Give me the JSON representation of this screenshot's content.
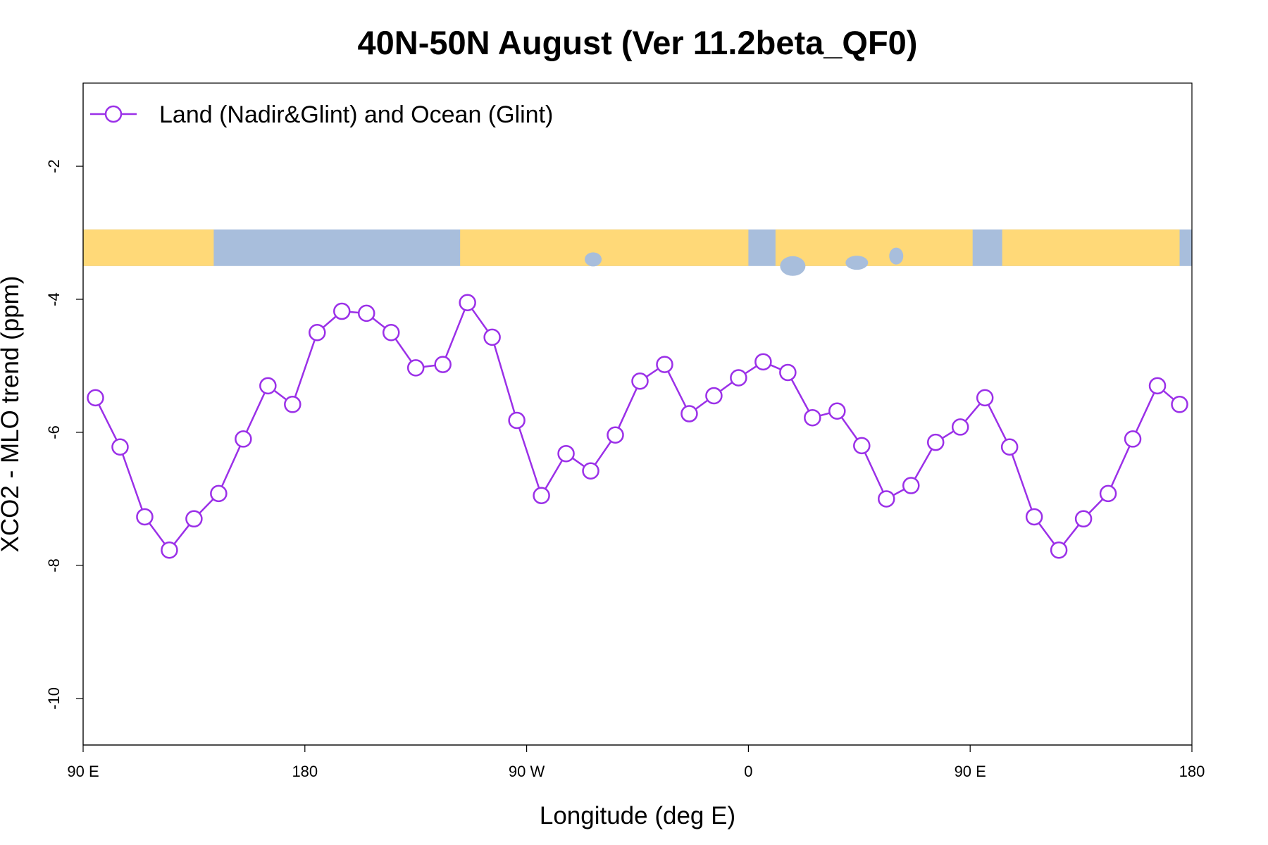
{
  "chart_data": {
    "type": "line",
    "title": "40N-50N August (Ver 11.2beta_QF0)",
    "xlabel": "Longitude (deg E)",
    "ylabel": "XCO2 - MLO trend (ppm)",
    "xlim": [
      90,
      540
    ],
    "ylim": [
      -10.7,
      -0.75
    ],
    "x_ticks": [
      {
        "value": 90,
        "label": "90 E"
      },
      {
        "value": 180,
        "label": "180"
      },
      {
        "value": 270,
        "label": "90 W"
      },
      {
        "value": 360,
        "label": "0"
      },
      {
        "value": 450,
        "label": "90 E"
      },
      {
        "value": 540,
        "label": "180"
      }
    ],
    "y_ticks": [
      {
        "value": -2,
        "label": "-2"
      },
      {
        "value": -4,
        "label": "-4"
      },
      {
        "value": -6,
        "label": "-6"
      },
      {
        "value": -8,
        "label": "-8"
      },
      {
        "value": -10,
        "label": "-10"
      }
    ],
    "legend": {
      "position": "top-left",
      "entries": [
        "Land (Nadir&Glint) and Ocean (Glint)"
      ]
    },
    "map_strip": {
      "y_top": -2.95,
      "y_bottom": -3.5,
      "land_color": "#FFD978",
      "ocean_color": "#A8BEDC"
    },
    "series": [
      {
        "name": "Land (Nadir&Glint) and Ocean (Glint)",
        "color": "#9B30E8",
        "marker": "open-circle",
        "x": [
          95,
          105,
          115,
          125,
          135,
          145,
          155,
          165,
          175,
          185,
          195,
          205,
          215,
          225,
          236,
          246,
          256,
          266,
          276,
          286,
          296,
          306,
          316,
          326,
          336,
          346,
          356,
          366,
          376,
          386,
          396,
          406,
          416,
          426,
          436,
          446,
          456,
          466,
          476,
          486,
          496,
          506,
          516,
          526,
          535
        ],
        "values": [
          -5.48,
          -6.22,
          -7.27,
          -7.77,
          -7.3,
          -6.92,
          -6.1,
          -5.3,
          -5.58,
          -4.5,
          -4.18,
          -4.21,
          -4.5,
          -5.03,
          -4.98,
          -4.05,
          -4.57,
          -5.82,
          -6.95,
          -6.32,
          -6.58,
          -6.04,
          -5.23,
          -4.98,
          -5.72,
          -5.45,
          -5.18,
          -4.94,
          -5.1,
          -5.78,
          -5.68,
          -6.2,
          -7.0,
          -6.8,
          -6.15,
          -5.92,
          -5.48,
          -6.22,
          -7.27,
          -7.77,
          -7.3,
          -6.92,
          -6.1,
          -5.3,
          -5.58
        ]
      }
    ]
  }
}
